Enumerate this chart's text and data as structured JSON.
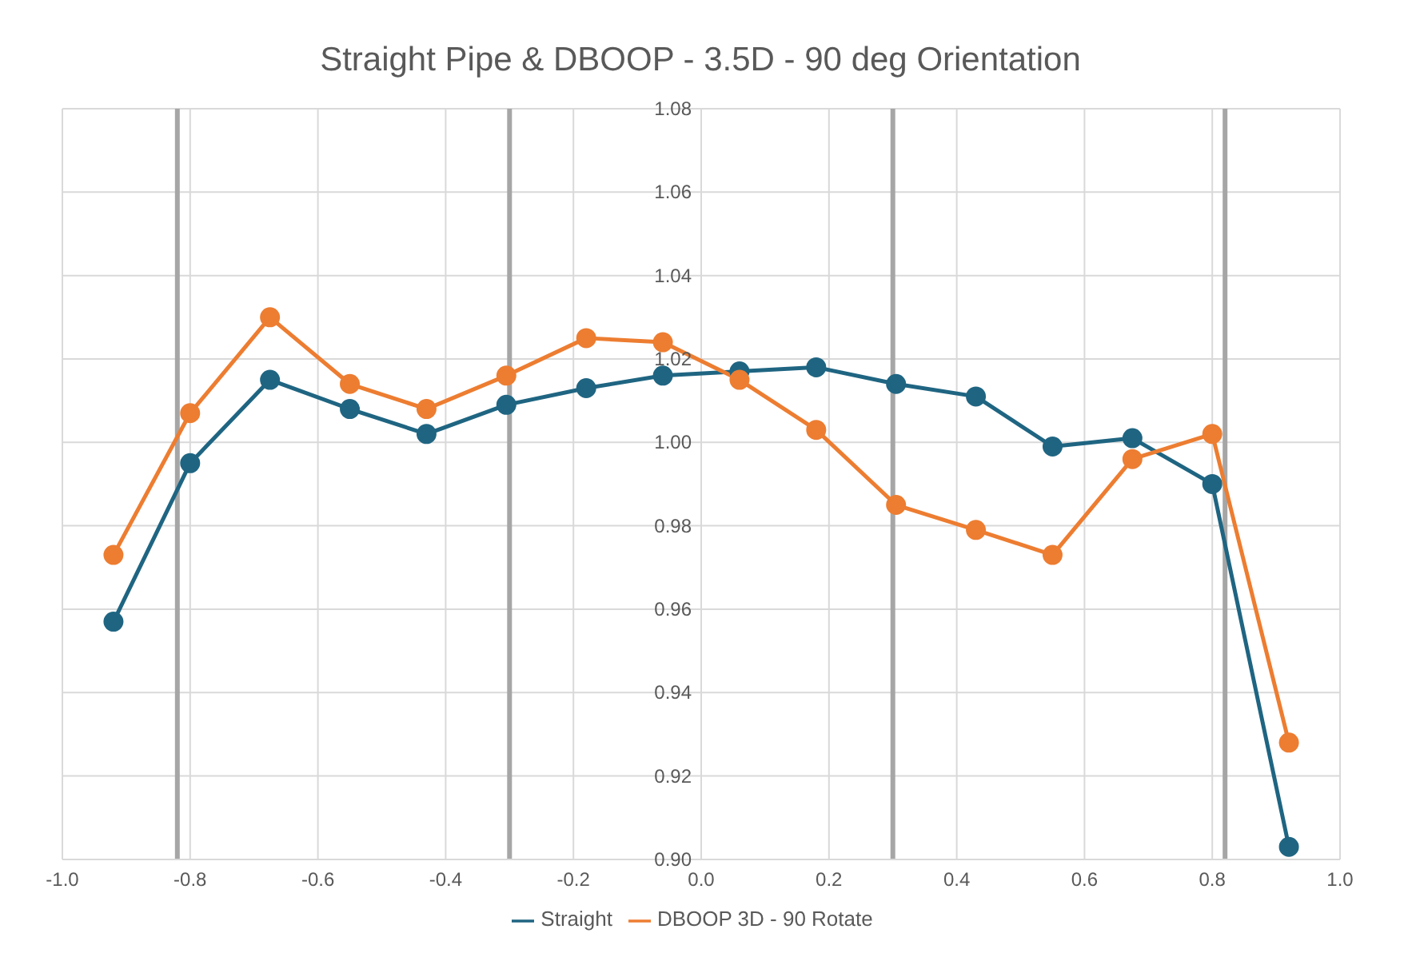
{
  "chart_data": {
    "type": "line",
    "title": "Straight Pipe & DBOOP - 3.5D  - 90 deg Orientation",
    "x": [
      -0.92,
      -0.8,
      -0.675,
      -0.55,
      -0.43,
      -0.305,
      -0.18,
      -0.06,
      0.06,
      0.18,
      0.305,
      0.43,
      0.55,
      0.675,
      0.8,
      0.92
    ],
    "series": [
      {
        "name": "Straight",
        "color": "#1f6582",
        "values": [
          0.957,
          0.995,
          1.015,
          1.008,
          1.002,
          1.009,
          1.013,
          1.016,
          1.017,
          1.018,
          1.014,
          1.011,
          0.999,
          1.001,
          0.99,
          0.903
        ]
      },
      {
        "name": "DBOOP 3D - 90 Rotate",
        "color": "#ed7d31",
        "values": [
          0.973,
          1.007,
          1.03,
          1.014,
          1.008,
          1.016,
          1.025,
          1.024,
          1.015,
          1.003,
          0.985,
          0.979,
          0.973,
          0.996,
          1.002,
          0.928
        ]
      }
    ],
    "xlim": [
      -1.0,
      1.0
    ],
    "xticks": [
      {
        "value": -1.0,
        "label": "-1.0"
      },
      {
        "value": -0.8,
        "label": "-0.8"
      },
      {
        "value": -0.6,
        "label": "-0.6"
      },
      {
        "value": -0.4,
        "label": "-0.4"
      },
      {
        "value": -0.2,
        "label": "-0.2"
      },
      {
        "value": 0,
        "label": "0.0"
      },
      {
        "value": 0.2,
        "label": "0.2"
      },
      {
        "value": 0.4,
        "label": "0.4"
      },
      {
        "value": 0.6,
        "label": "0.6"
      },
      {
        "value": 0.8,
        "label": "0.8"
      },
      {
        "value": 1.0,
        "label": "1.0"
      }
    ],
    "ylim": [
      0.9,
      1.08
    ],
    "yticks": [
      {
        "value": 0.9,
        "label": "0.90"
      },
      {
        "value": 0.92,
        "label": "0.92"
      },
      {
        "value": 0.94,
        "label": "0.94"
      },
      {
        "value": 0.96,
        "label": "0.96"
      },
      {
        "value": 0.98,
        "label": "0.98"
      },
      {
        "value": 1.0,
        "label": "1.00"
      },
      {
        "value": 1.02,
        "label": "1.02"
      },
      {
        "value": 1.04,
        "label": "1.04"
      },
      {
        "value": 1.06,
        "label": "1.06"
      },
      {
        "value": 1.08,
        "label": "1.08"
      }
    ],
    "ref_lines": [
      {
        "axis": "x",
        "value": -0.82,
        "color": "#a6a6a6"
      },
      {
        "axis": "x",
        "value": -0.3,
        "color": "#a6a6a6"
      },
      {
        "axis": "x",
        "value": 0.3,
        "color": "#a6a6a6"
      },
      {
        "axis": "x",
        "value": 0.82,
        "color": "#a6a6a6"
      }
    ],
    "grid": true,
    "legend": "bottom",
    "marker": "circle",
    "line_style": "solid"
  }
}
